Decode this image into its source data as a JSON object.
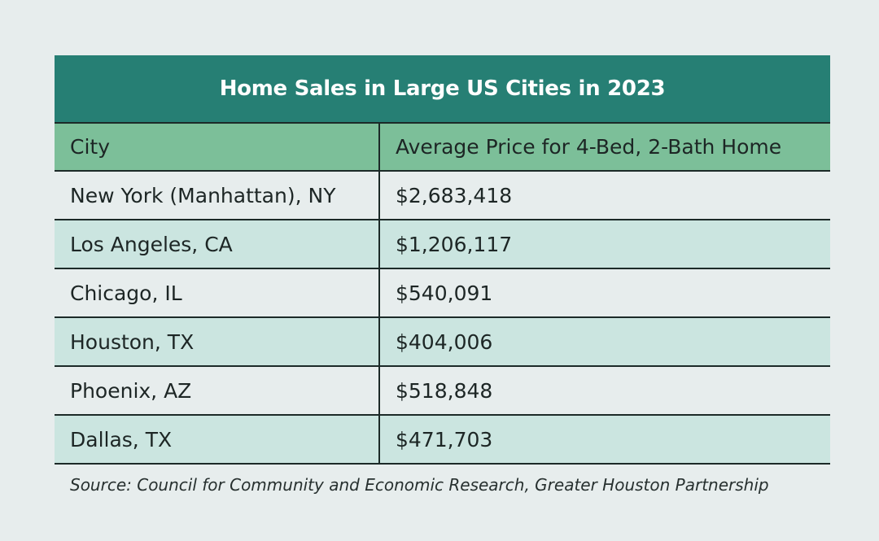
{
  "chart_data": {
    "type": "table",
    "title": "Home Sales in Large US Cities in 2023",
    "columns": [
      "City",
      "Average Price for 4-Bed, 2-Bath Home"
    ],
    "rows": [
      {
        "city": "New York (Manhattan), NY",
        "price": "$2,683,418",
        "value": 2683418
      },
      {
        "city": "Los Angeles, CA",
        "price": "$1,206,117",
        "value": 1206117
      },
      {
        "city": "Chicago, IL",
        "price": "$540,091",
        "value": 540091
      },
      {
        "city": "Houston, TX",
        "price": "$404,006",
        "value": 404006
      },
      {
        "city": "Phoenix, AZ",
        "price": "$518,848",
        "value": 518848
      },
      {
        "city": "Dallas, TX",
        "price": "$471,703",
        "value": 471703
      }
    ],
    "source": "Source: Council for Community and Economic Research, Greater Houston Partnership"
  },
  "colors": {
    "title_background": "#267f74",
    "header_background": "#7cbf99",
    "stripe_background": "#cbe5e0",
    "page_background": "#e7eded"
  }
}
